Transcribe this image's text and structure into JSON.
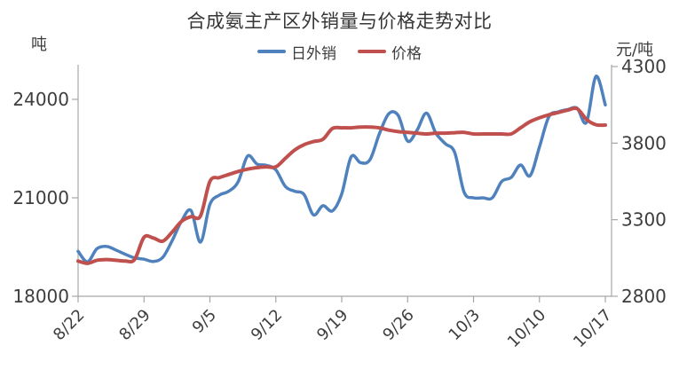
{
  "title": "合成氨主产区外销量与价格走势对比",
  "left_axis_unit": "吨",
  "right_axis_unit": "元/吨",
  "chart_data": {
    "type": "line",
    "title": "合成氨主产区外销量与价格走势对比",
    "grid": false,
    "legend_position": "top",
    "x": [
      "8/22",
      "8/23",
      "8/24",
      "8/25",
      "8/26",
      "8/27",
      "8/28",
      "8/29",
      "8/30",
      "8/31",
      "9/1",
      "9/2",
      "9/3",
      "9/4",
      "9/5",
      "9/6",
      "9/7",
      "9/8",
      "9/9",
      "9/10",
      "9/11",
      "9/12",
      "9/13",
      "9/14",
      "9/15",
      "9/16",
      "9/17",
      "9/18",
      "9/19",
      "9/20",
      "9/21",
      "9/22",
      "9/23",
      "9/24",
      "9/25",
      "9/26",
      "9/27",
      "9/28",
      "9/29",
      "9/30",
      "10/1",
      "10/2",
      "10/3",
      "10/4",
      "10/5",
      "10/6",
      "10/7",
      "10/8",
      "10/9",
      "10/10",
      "10/11",
      "10/12",
      "10/13",
      "10/14",
      "10/15",
      "10/16",
      "10/17"
    ],
    "x_tick_labels": [
      "8/22",
      "8/29",
      "9/5",
      "9/12",
      "9/19",
      "9/26",
      "10/3",
      "10/10",
      "10/17"
    ],
    "x_tick_indices": [
      0,
      7,
      14,
      21,
      28,
      35,
      42,
      49,
      56
    ],
    "left_axis": {
      "label": "吨",
      "ticks": [
        18000,
        21000,
        24000
      ],
      "range": [
        18000,
        25000
      ]
    },
    "right_axis": {
      "label": "元/吨",
      "ticks": [
        2800,
        3300,
        3800,
        4300
      ],
      "range": [
        2800,
        4300
      ]
    },
    "series": [
      {
        "name": "日外销",
        "axis": "left",
        "color": "#4F81BD",
        "values": [
          19370,
          19050,
          19450,
          19520,
          19410,
          19280,
          19170,
          19130,
          19060,
          19190,
          19700,
          20300,
          20610,
          19650,
          20800,
          21080,
          21200,
          21490,
          22270,
          22030,
          21990,
          21850,
          21350,
          21200,
          21100,
          20480,
          20760,
          20600,
          21120,
          22250,
          22070,
          22160,
          22950,
          23560,
          23510,
          22730,
          23060,
          23580,
          22970,
          22650,
          22380,
          21170,
          21000,
          21000,
          21000,
          21500,
          21620,
          22000,
          21670,
          22550,
          23470,
          23620,
          23690,
          23730,
          23300,
          24700,
          23830
        ]
      },
      {
        "name": "价格",
        "axis": "right",
        "color": "#C0504D",
        "values": [
          3030,
          3015,
          3035,
          3040,
          3035,
          3030,
          3040,
          3185,
          3180,
          3160,
          3220,
          3290,
          3320,
          3325,
          3550,
          3575,
          3595,
          3615,
          3630,
          3640,
          3645,
          3645,
          3700,
          3755,
          3790,
          3810,
          3825,
          3895,
          3900,
          3900,
          3905,
          3905,
          3900,
          3885,
          3875,
          3870,
          3865,
          3860,
          3865,
          3865,
          3868,
          3870,
          3860,
          3860,
          3860,
          3860,
          3860,
          3900,
          3940,
          3965,
          3985,
          4000,
          4015,
          4025,
          3955,
          3920,
          3918
        ]
      }
    ]
  }
}
